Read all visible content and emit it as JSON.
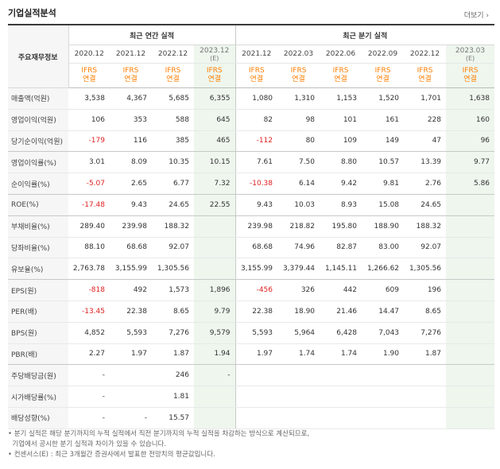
{
  "title": "기업실적분석",
  "more_label": "더보기 ›",
  "header": {
    "row_label": "주요재무정보",
    "annual_group": "최근 연간 실적",
    "quarter_group": "최근 분기 실적"
  },
  "columns": [
    {
      "period": "2020.12",
      "est": "",
      "ifrs": "IFRS",
      "basis": "연결"
    },
    {
      "period": "2021.12",
      "est": "",
      "ifrs": "IFRS",
      "basis": "연결"
    },
    {
      "period": "2022.12",
      "est": "",
      "ifrs": "IFRS",
      "basis": "연결"
    },
    {
      "period": "2023.12",
      "est": "(E)",
      "ifrs": "IFRS",
      "basis": "연결"
    },
    {
      "period": "2021.12",
      "est": "",
      "ifrs": "IFRS",
      "basis": "연결"
    },
    {
      "period": "2022.03",
      "est": "",
      "ifrs": "IFRS",
      "basis": "연결"
    },
    {
      "period": "2022.06",
      "est": "",
      "ifrs": "IFRS",
      "basis": "연결"
    },
    {
      "period": "2022.09",
      "est": "",
      "ifrs": "IFRS",
      "basis": "연결"
    },
    {
      "period": "2022.12",
      "est": "",
      "ifrs": "IFRS",
      "basis": "연결"
    },
    {
      "period": "2023.03",
      "est": "(E)",
      "ifrs": "IFRS",
      "basis": "연결"
    }
  ],
  "rows": [
    {
      "label": "매출액(억원)",
      "values": [
        "3,538",
        "4,367",
        "5,685",
        "6,355",
        "1,080",
        "1,310",
        "1,153",
        "1,520",
        "1,701",
        "1,638"
      ]
    },
    {
      "label": "영업이익(억원)",
      "values": [
        "106",
        "353",
        "588",
        "645",
        "82",
        "98",
        "101",
        "161",
        "228",
        "160"
      ]
    },
    {
      "label": "당기순이익(억원)",
      "values": [
        "-179",
        "116",
        "385",
        "465",
        "-112",
        "80",
        "109",
        "149",
        "47",
        "96"
      ]
    },
    {
      "label": "영업이익률(%)",
      "values": [
        "3.01",
        "8.09",
        "10.35",
        "10.15",
        "7.61",
        "7.50",
        "8.80",
        "10.57",
        "13.39",
        "9.77"
      ]
    },
    {
      "label": "순이익률(%)",
      "values": [
        "-5.07",
        "2.65",
        "6.77",
        "7.32",
        "-10.38",
        "6.14",
        "9.42",
        "9.81",
        "2.76",
        "5.86"
      ]
    },
    {
      "label": "ROE(%)",
      "values": [
        "-17.48",
        "9.43",
        "24.65",
        "22.55",
        "9.43",
        "10.03",
        "8.93",
        "15.08",
        "24.65",
        ""
      ]
    },
    {
      "label": "부채비율(%)",
      "values": [
        "289.40",
        "239.98",
        "188.32",
        "",
        "239.98",
        "218.82",
        "195.80",
        "188.90",
        "188.32",
        ""
      ]
    },
    {
      "label": "당좌비율(%)",
      "values": [
        "88.10",
        "68.68",
        "92.07",
        "",
        "68.68",
        "74.96",
        "82.87",
        "83.00",
        "92.07",
        ""
      ]
    },
    {
      "label": "유보율(%)",
      "values": [
        "2,763.78",
        "3,155.99",
        "1,305.56",
        "",
        "3,155.99",
        "3,379.44",
        "1,145.11",
        "1,266.62",
        "1,305.56",
        ""
      ]
    },
    {
      "label": "EPS(원)",
      "values": [
        "-818",
        "492",
        "1,573",
        "1,896",
        "-456",
        "326",
        "442",
        "609",
        "196",
        ""
      ]
    },
    {
      "label": "PER(배)",
      "values": [
        "-13.45",
        "22.38",
        "8.65",
        "9.79",
        "22.38",
        "18.90",
        "21.46",
        "14.47",
        "8.65",
        ""
      ]
    },
    {
      "label": "BPS(원)",
      "values": [
        "4,852",
        "5,593",
        "7,276",
        "9,579",
        "5,593",
        "5,964",
        "6,428",
        "7,043",
        "7,276",
        ""
      ]
    },
    {
      "label": "PBR(배)",
      "values": [
        "2.27",
        "1.97",
        "1.87",
        "1.94",
        "1.97",
        "1.74",
        "1.74",
        "1.90",
        "1.87",
        ""
      ]
    },
    {
      "label": "주당배당금(원)",
      "values": [
        "-",
        "",
        "246",
        "-",
        "",
        "",
        "",
        "",
        "",
        ""
      ]
    },
    {
      "label": "시가배당률(%)",
      "values": [
        "-",
        "",
        "1.81",
        "",
        "",
        "",
        "",
        "",
        "",
        ""
      ]
    },
    {
      "label": "배당성향(%)",
      "values": [
        "-",
        "-",
        "15.57",
        "",
        "",
        "",
        "",
        "",
        "",
        ""
      ]
    }
  ],
  "notes": [
    "분기 실적은 해당 분기까지의 누적 실적에서 직전 분기까지의 누적 실적을 차감하는 방식으로 계산되므로,",
    "기업에서 공시한 분기 실적과 차이가 있을 수 있습니다.",
    "컨센서스(E) : 최근 3개월간 증권사에서 발표한 전망치의 평균값입니다."
  ]
}
